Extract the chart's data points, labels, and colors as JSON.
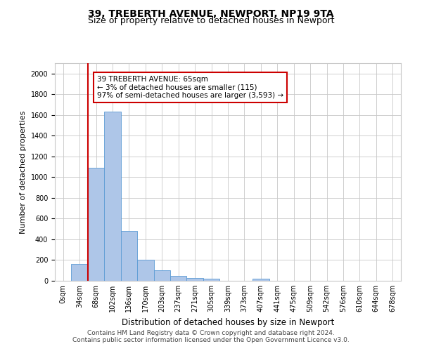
{
  "title1": "39, TREBERTH AVENUE, NEWPORT, NP19 9TA",
  "title2": "Size of property relative to detached houses in Newport",
  "xlabel": "Distribution of detached houses by size in Newport",
  "ylabel": "Number of detached properties",
  "bar_labels": [
    "0sqm",
    "34sqm",
    "68sqm",
    "102sqm",
    "136sqm",
    "170sqm",
    "203sqm",
    "237sqm",
    "271sqm",
    "305sqm",
    "339sqm",
    "373sqm",
    "407sqm",
    "441sqm",
    "475sqm",
    "509sqm",
    "542sqm",
    "576sqm",
    "610sqm",
    "644sqm",
    "678sqm"
  ],
  "bar_values": [
    0,
    165,
    1090,
    1630,
    480,
    205,
    103,
    47,
    28,
    20,
    0,
    0,
    20,
    0,
    0,
    0,
    0,
    0,
    0,
    0,
    0
  ],
  "bar_color": "#aec6e8",
  "bar_edge_color": "#5b9bd5",
  "highlight_color": "#cc0000",
  "ylim_max": 2100,
  "yticks": [
    0,
    200,
    400,
    600,
    800,
    1000,
    1200,
    1400,
    1600,
    1800,
    2000
  ],
  "annotation_line1": "39 TREBERTH AVENUE: 65sqm",
  "annotation_line2": "← 3% of detached houses are smaller (115)",
  "annotation_line3": "97% of semi-detached houses are larger (3,593) →",
  "annotation_box_color": "#cc0000",
  "footer1": "Contains HM Land Registry data © Crown copyright and database right 2024.",
  "footer2": "Contains public sector information licensed under the Open Government Licence v3.0.",
  "bg_color": "#ffffff",
  "grid_color": "#c8c8c8",
  "title1_fontsize": 10,
  "title2_fontsize": 9,
  "ylabel_fontsize": 8,
  "xlabel_fontsize": 8.5,
  "tick_fontsize": 7,
  "ann_fontsize": 7.5,
  "footer_fontsize": 6.5,
  "red_line_x": 1.5
}
